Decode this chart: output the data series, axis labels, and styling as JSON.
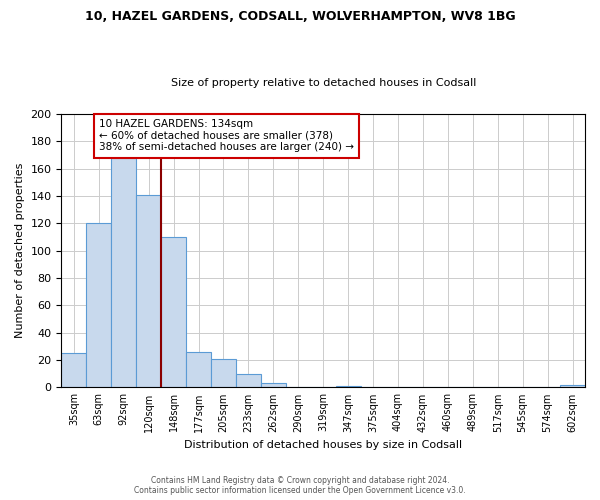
{
  "title": "10, HAZEL GARDENS, CODSALL, WOLVERHAMPTON, WV8 1BG",
  "subtitle": "Size of property relative to detached houses in Codsall",
  "xlabel": "Distribution of detached houses by size in Codsall",
  "ylabel": "Number of detached properties",
  "bin_labels": [
    "35sqm",
    "63sqm",
    "92sqm",
    "120sqm",
    "148sqm",
    "177sqm",
    "205sqm",
    "233sqm",
    "262sqm",
    "290sqm",
    "319sqm",
    "347sqm",
    "375sqm",
    "404sqm",
    "432sqm",
    "460sqm",
    "489sqm",
    "517sqm",
    "545sqm",
    "574sqm",
    "602sqm"
  ],
  "bar_heights": [
    25,
    120,
    168,
    141,
    110,
    26,
    21,
    10,
    3,
    0,
    0,
    1,
    0,
    0,
    0,
    0,
    0,
    0,
    0,
    0,
    2
  ],
  "bar_color": "#c8d9ed",
  "bar_edge_color": "#5b9bd5",
  "vline_color": "#8b0000",
  "vline_index": 3.5,
  "annotation_title": "10 HAZEL GARDENS: 134sqm",
  "annotation_line1": "← 60% of detached houses are smaller (378)",
  "annotation_line2": "38% of semi-detached houses are larger (240) →",
  "annotation_box_color": "#ffffff",
  "annotation_box_edge": "#cc0000",
  "ylim": [
    0,
    200
  ],
  "yticks": [
    0,
    20,
    40,
    60,
    80,
    100,
    120,
    140,
    160,
    180,
    200
  ],
  "footer1": "Contains HM Land Registry data © Crown copyright and database right 2024.",
  "footer2": "Contains public sector information licensed under the Open Government Licence v3.0.",
  "bg_color": "#ffffff",
  "grid_color": "#cccccc"
}
